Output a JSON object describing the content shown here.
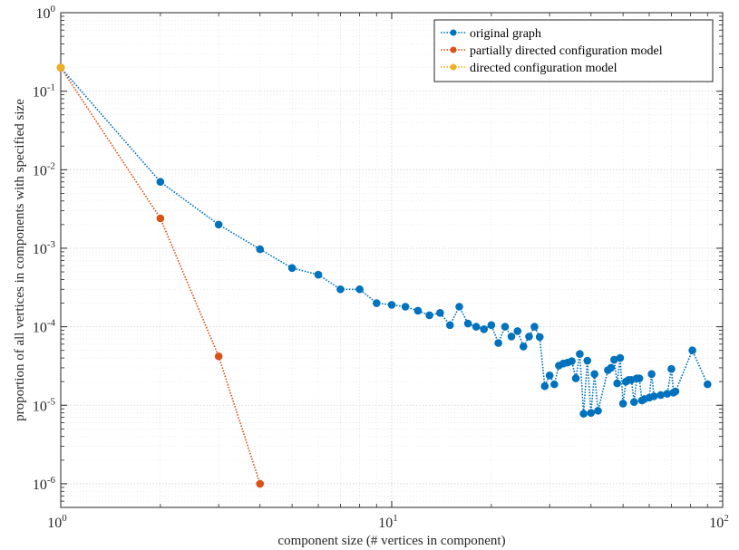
{
  "chart_data": {
    "type": "line",
    "xscale": "log",
    "yscale": "log",
    "xlim": [
      1,
      100
    ],
    "ylim": [
      5e-07,
      1
    ],
    "xlabel": "component size (# vertices in component)",
    "ylabel": "proportion of all vertices in components with specified size",
    "grid": true,
    "legend_position": "top-right",
    "x_ticks": [
      {
        "value": 1,
        "base": "10",
        "exp": "0"
      },
      {
        "value": 10,
        "base": "10",
        "exp": "1"
      },
      {
        "value": 100,
        "base": "10",
        "exp": "2"
      }
    ],
    "y_ticks": [
      {
        "value": 1,
        "base": "10",
        "exp": "0"
      },
      {
        "value": 0.1,
        "base": "10",
        "exp": "-1"
      },
      {
        "value": 0.01,
        "base": "10",
        "exp": "-2"
      },
      {
        "value": 0.001,
        "base": "10",
        "exp": "-3"
      },
      {
        "value": 0.0001,
        "base": "10",
        "exp": "-4"
      },
      {
        "value": 1e-05,
        "base": "10",
        "exp": "-5"
      },
      {
        "value": 1e-06,
        "base": "10",
        "exp": "-6"
      }
    ],
    "series": [
      {
        "name": "original graph",
        "color": "#0072BD",
        "points": [
          [
            1,
            0.2
          ],
          [
            2,
            0.007
          ],
          [
            3,
            0.002
          ],
          [
            4,
            0.00097
          ],
          [
            5,
            0.00056
          ],
          [
            6,
            0.00046
          ],
          [
            7,
            0.0003
          ],
          [
            8,
            0.0003
          ],
          [
            9,
            0.0002
          ],
          [
            10,
            0.00019
          ],
          [
            11,
            0.00018
          ],
          [
            12,
            0.00016
          ],
          [
            13,
            0.00014
          ],
          [
            14,
            0.00015
          ],
          [
            15,
            0.000105
          ],
          [
            16,
            0.00018
          ],
          [
            17,
            0.00011
          ],
          [
            18,
            0.0001
          ],
          [
            19,
            9.3e-05
          ],
          [
            20,
            0.000105
          ],
          [
            21,
            6.2e-05
          ],
          [
            22,
            0.0001
          ],
          [
            23,
            7.5e-05
          ],
          [
            24,
            8.8e-05
          ],
          [
            25,
            5.6e-05
          ],
          [
            26,
            7.5e-05
          ],
          [
            27,
            0.0001
          ],
          [
            28,
            7.4e-05
          ],
          [
            29,
            1.75e-05
          ],
          [
            30,
            2.4e-05
          ],
          [
            31,
            1.85e-05
          ],
          [
            32,
            3.2e-05
          ],
          [
            33,
            3.4e-05
          ],
          [
            34,
            3.5e-05
          ],
          [
            35,
            3.65e-05
          ],
          [
            36,
            2.2e-05
          ],
          [
            37,
            4.5e-05
          ],
          [
            38,
            7.8e-06
          ],
          [
            39,
            3.7e-05
          ],
          [
            40,
            8e-06
          ],
          [
            41,
            2.5e-05
          ],
          [
            42,
            8.5e-06
          ],
          [
            45,
            2.8e-05
          ],
          [
            46,
            3e-05
          ],
          [
            47,
            3.8e-05
          ],
          [
            48,
            1.9e-05
          ],
          [
            49,
            4e-05
          ],
          [
            50,
            1.05e-05
          ],
          [
            51,
            2e-05
          ],
          [
            52,
            2.1e-05
          ],
          [
            53,
            2.1e-05
          ],
          [
            54,
            1.1e-05
          ],
          [
            55,
            2.2e-05
          ],
          [
            56,
            2.2e-05
          ],
          [
            57,
            1.15e-05
          ],
          [
            58,
            1.2e-05
          ],
          [
            60,
            1.25e-05
          ],
          [
            61,
            2.5e-05
          ],
          [
            62,
            1.3e-05
          ],
          [
            65,
            1.35e-05
          ],
          [
            68,
            1.4e-05
          ],
          [
            70,
            2.9e-05
          ],
          [
            71,
            1.45e-05
          ],
          [
            72,
            1.5e-05
          ],
          [
            81,
            5e-05
          ],
          [
            90,
            1.85e-05
          ]
        ]
      },
      {
        "name": "partially directed configuration model",
        "color": "#D95319",
        "points": [
          [
            1,
            0.2
          ],
          [
            2,
            0.0024
          ],
          [
            3,
            4.2e-05
          ],
          [
            4,
            1e-06
          ]
        ]
      },
      {
        "name": "directed configuration model",
        "color": "#EDB120",
        "points": [
          [
            1,
            0.2
          ]
        ]
      }
    ]
  }
}
